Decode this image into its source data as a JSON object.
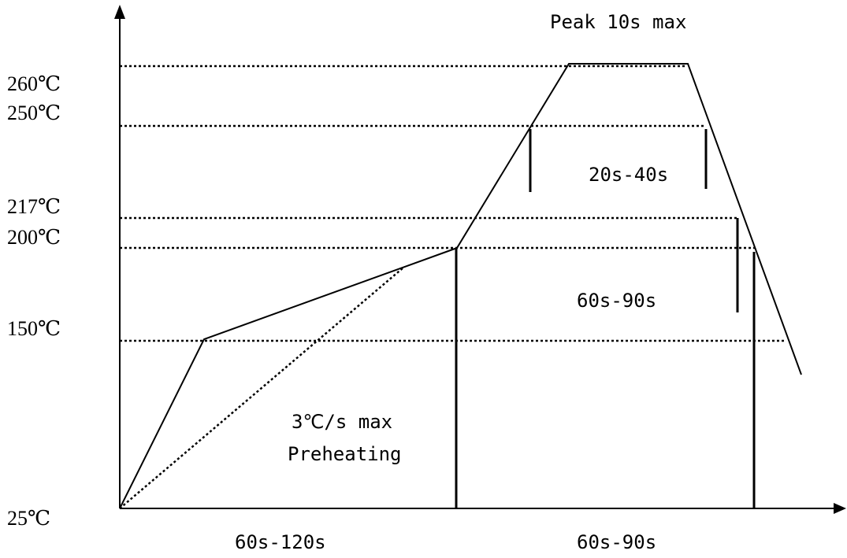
{
  "y_labels": [
    "260℃",
    "250℃",
    "217℃",
    "200℃",
    "150℃",
    "25℃"
  ],
  "annotations": {
    "peak": "Peak 10s max",
    "above_250": "20s-40s",
    "above_217": "60s-90s",
    "ramp_rate": "3℃/s max",
    "preheating": "Preheating",
    "preheat_duration": "60s-120s",
    "reflow_duration": "60s-90s"
  }
}
